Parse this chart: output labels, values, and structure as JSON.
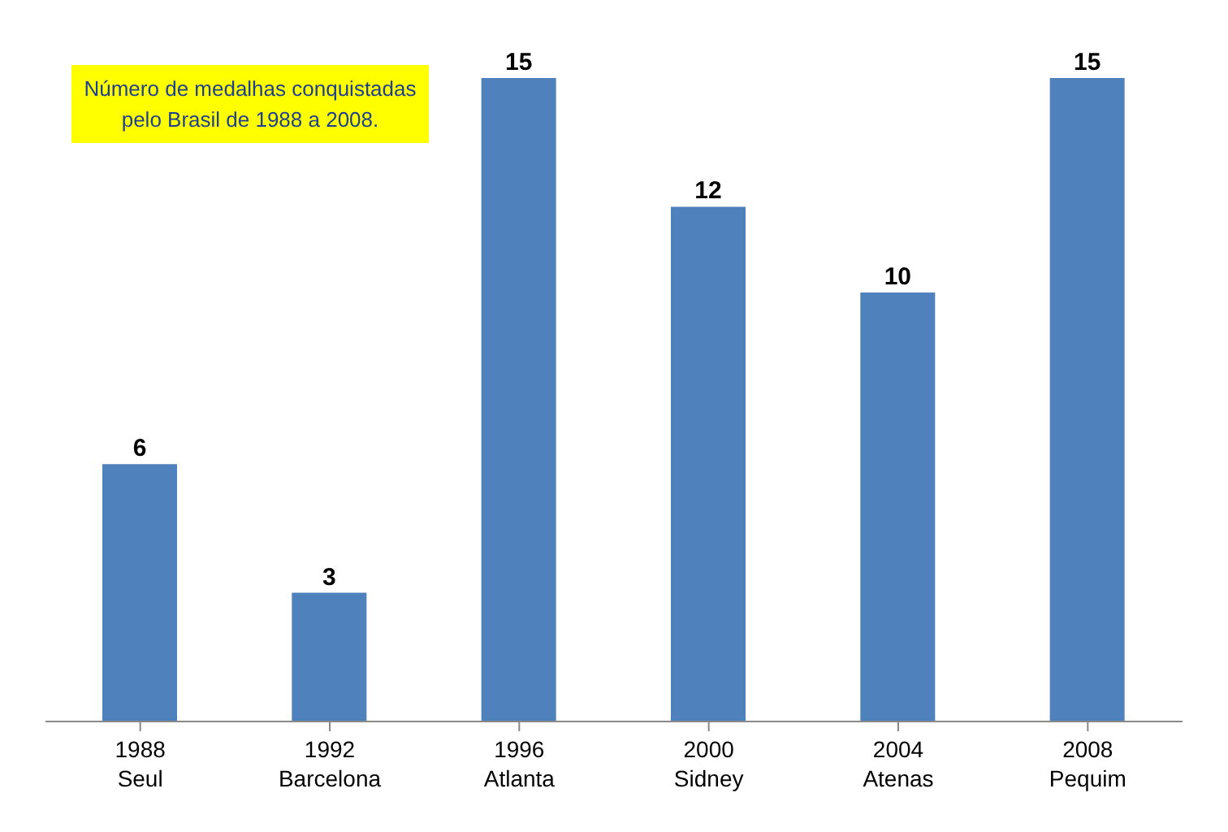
{
  "chart_data": {
    "type": "bar",
    "title": "Número de medalhas conquistadas pelo Brasil de 1988 a 2008.",
    "categories": [
      "1988\nSeul",
      "1992\nBarcelona",
      "1996\nAtlanta",
      "2000\nSidney",
      "2004\nAtenas",
      "2008\nPequim"
    ],
    "values": [
      6,
      3,
      15,
      12,
      10,
      15
    ],
    "color": "#4f81bd",
    "data_labels": true
  }
}
